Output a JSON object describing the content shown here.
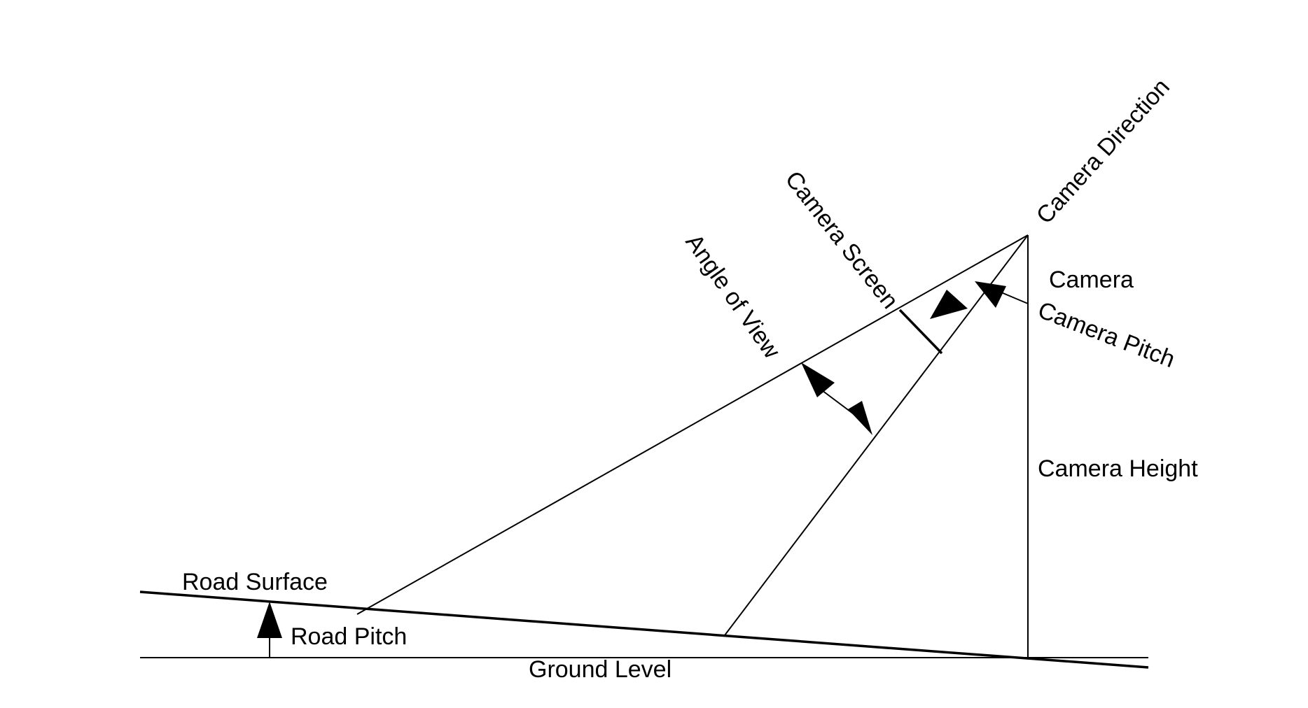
{
  "labels": {
    "camera_direction": "Camera Direction",
    "camera_screen": "Camera Screen",
    "angle_of_view": "Angle of View",
    "camera": "Camera",
    "camera_pitch": "Camera Pitch",
    "camera_height": "Camera Height",
    "road_surface": "Road Surface",
    "road_pitch": "Road Pitch",
    "ground_level": "Ground Level"
  },
  "colors": {
    "line": "#000000",
    "background": "#ffffff"
  }
}
